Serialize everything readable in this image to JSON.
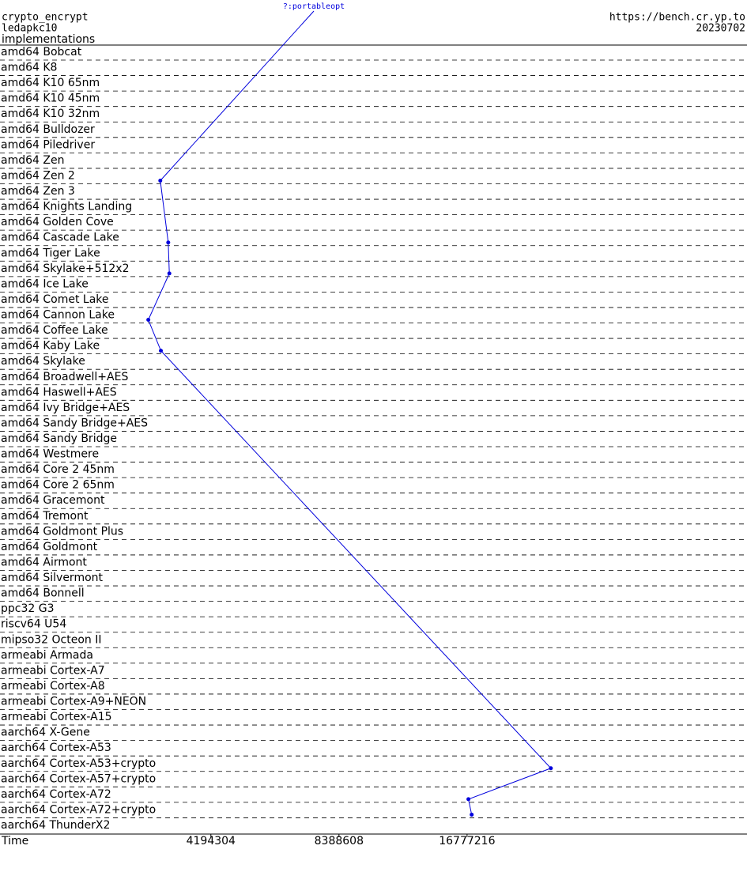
{
  "chart_data": {
    "type": "scatter-line",
    "title": "crypto_encrypt",
    "subtitle": "ledapkc10",
    "y_label": "implementations",
    "source": "https://bench.cr.yp.to",
    "date": "20230702",
    "annotation": "?:portableopt",
    "x_label": "Time",
    "log_x": true,
    "xlim": [
      1340000,
      76300000
    ],
    "xticks": [
      4194304,
      8388608,
      16777216
    ],
    "categories": [
      "amd64 Bobcat",
      "amd64 K8",
      "amd64 K10 65nm",
      "amd64 K10 45nm",
      "amd64 K10 32nm",
      "amd64 Bulldozer",
      "amd64 Piledriver",
      "amd64 Zen",
      "amd64 Zen 2",
      "amd64 Zen 3",
      "amd64 Knights Landing",
      "amd64 Golden Cove",
      "amd64 Cascade Lake",
      "amd64 Tiger Lake",
      "amd64 Skylake+512x2",
      "amd64 Ice Lake",
      "amd64 Comet Lake",
      "amd64 Cannon Lake",
      "amd64 Coffee Lake",
      "amd64 Kaby Lake",
      "amd64 Skylake",
      "amd64 Broadwell+AES",
      "amd64 Haswell+AES",
      "amd64 Ivy Bridge+AES",
      "amd64 Sandy Bridge+AES",
      "amd64 Sandy Bridge",
      "amd64 Westmere",
      "amd64 Core 2 45nm",
      "amd64 Core 2 65nm",
      "amd64 Gracemont",
      "amd64 Tremont",
      "amd64 Goldmont Plus",
      "amd64 Goldmont",
      "amd64 Airmont",
      "amd64 Silvermont",
      "amd64 Bonnell",
      "ppc32 G3",
      "riscv64 U54",
      "mipso32 Octeon II",
      "armeabi Armada",
      "armeabi Cortex-A7",
      "armeabi Cortex-A8",
      "armeabi Cortex-A9+NEON",
      "armeabi Cortex-A15",
      "aarch64 X-Gene",
      "aarch64 Cortex-A53",
      "aarch64 Cortex-A53+crypto",
      "aarch64 Cortex-A57+crypto",
      "aarch64 Cortex-A72",
      "aarch64 Cortex-A72+crypto",
      "aarch64 ThunderX2"
    ],
    "series": [
      {
        "name": "portableopt",
        "color": "#0000dd",
        "values": [
          null,
          null,
          null,
          null,
          null,
          null,
          null,
          null,
          3190000,
          null,
          null,
          null,
          3330000,
          null,
          3350000,
          null,
          null,
          2990000,
          null,
          3200000,
          null,
          null,
          null,
          null,
          null,
          null,
          null,
          null,
          null,
          null,
          null,
          null,
          null,
          null,
          null,
          null,
          null,
          null,
          null,
          null,
          null,
          null,
          null,
          null,
          null,
          null,
          26400000,
          null,
          16900000,
          17200000,
          null
        ]
      }
    ]
  }
}
